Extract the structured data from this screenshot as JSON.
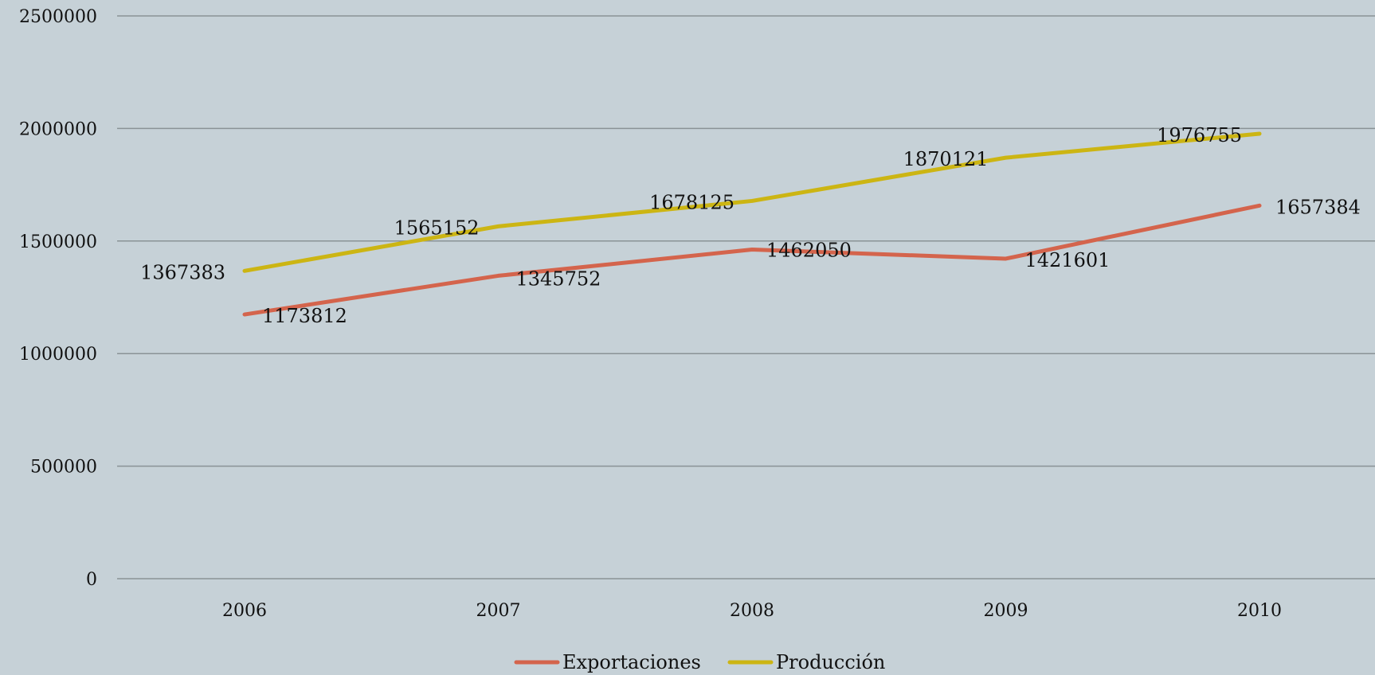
{
  "colors": {
    "background": "#c6d1d7",
    "gridline": "#8a9296",
    "exportaciones": "#d4644c",
    "produccion": "#ccb513"
  },
  "chart_data": {
    "type": "line",
    "title": "",
    "xlabel": "",
    "ylabel": "",
    "categories": [
      "2006",
      "2007",
      "2008",
      "2009",
      "2010"
    ],
    "ylim": [
      0,
      2500000
    ],
    "yticks": [
      "0",
      "500000",
      "1000000",
      "1500000",
      "2000000",
      "2500000"
    ],
    "grid": true,
    "legend_position": "bottom",
    "series": [
      {
        "name": "Exportaciones",
        "values": [
          1173812,
          1345752,
          1462050,
          1421601,
          1657384
        ],
        "labels": [
          "1173812",
          "1345752",
          "1462050",
          "1421601",
          "1657384"
        ]
      },
      {
        "name": "Producción",
        "values": [
          1367383,
          1565152,
          1678125,
          1870121,
          1976755
        ],
        "labels": [
          "1367383",
          "1565152",
          "1678125",
          "1870121",
          "1976755"
        ]
      }
    ]
  }
}
